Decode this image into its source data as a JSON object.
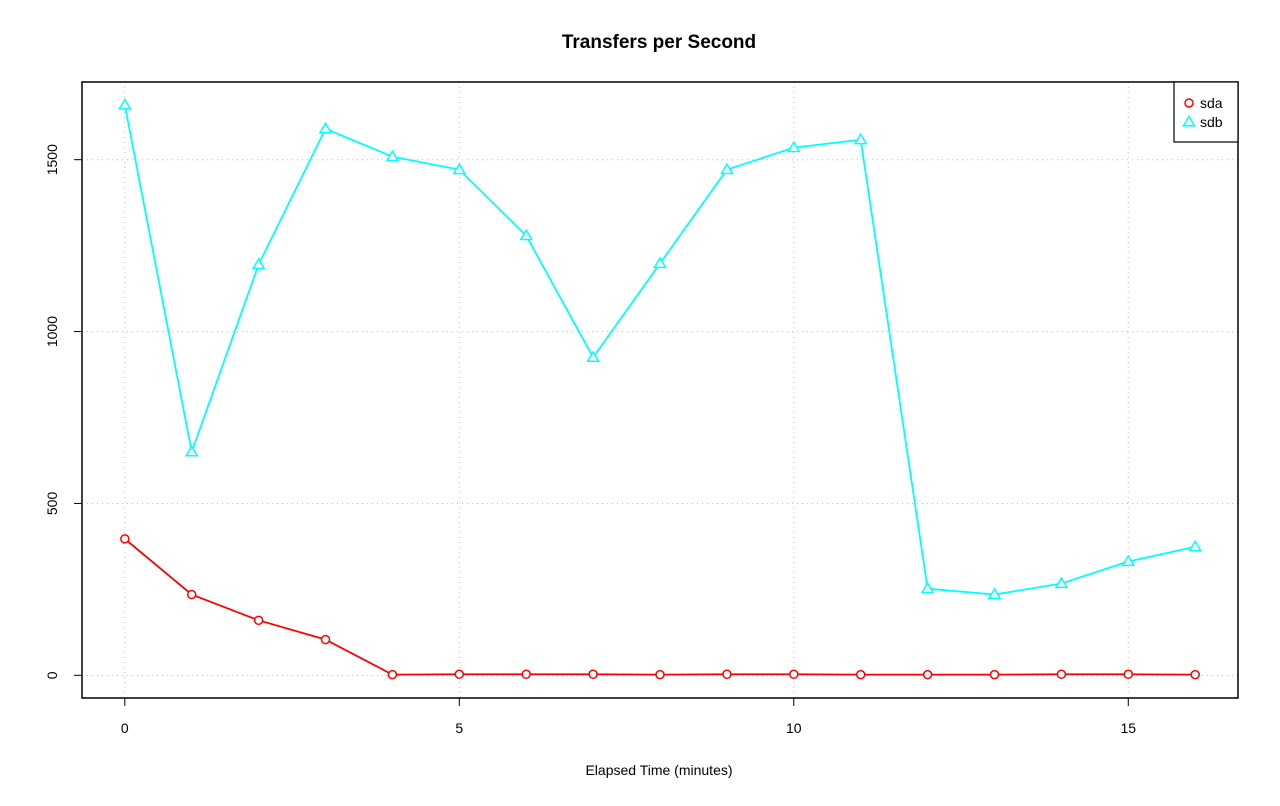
{
  "chart_data": {
    "type": "line",
    "title": "Transfers per Second",
    "x_label": "Elapsed Time (minutes)",
    "x": [
      0,
      1,
      2,
      3,
      4,
      5,
      6,
      7,
      8,
      9,
      10,
      11,
      12,
      13,
      14,
      15,
      16
    ],
    "series": [
      {
        "name": "sda",
        "color": "#ff0000",
        "marker": "circle",
        "values": [
          397,
          235,
          160,
          104,
          2,
          3,
          3,
          3,
          2,
          3,
          3,
          2,
          2,
          2,
          3,
          3,
          2
        ]
      },
      {
        "name": "sdb",
        "color": "#00ffff",
        "marker": "triangle",
        "values": [
          1659,
          650,
          1195,
          1590,
          1509,
          1471,
          1279,
          925,
          1198,
          1471,
          1535,
          1558,
          252,
          235,
          267,
          331,
          374
        ]
      }
    ],
    "xlim": [
      -0.64,
      16.64
    ],
    "xticks": [
      0,
      5,
      10,
      15
    ],
    "ylim": [
      -66,
      1726
    ],
    "yticks": [
      0,
      500,
      1000,
      1500
    ],
    "grid": true,
    "legend_position": "top-right"
  }
}
